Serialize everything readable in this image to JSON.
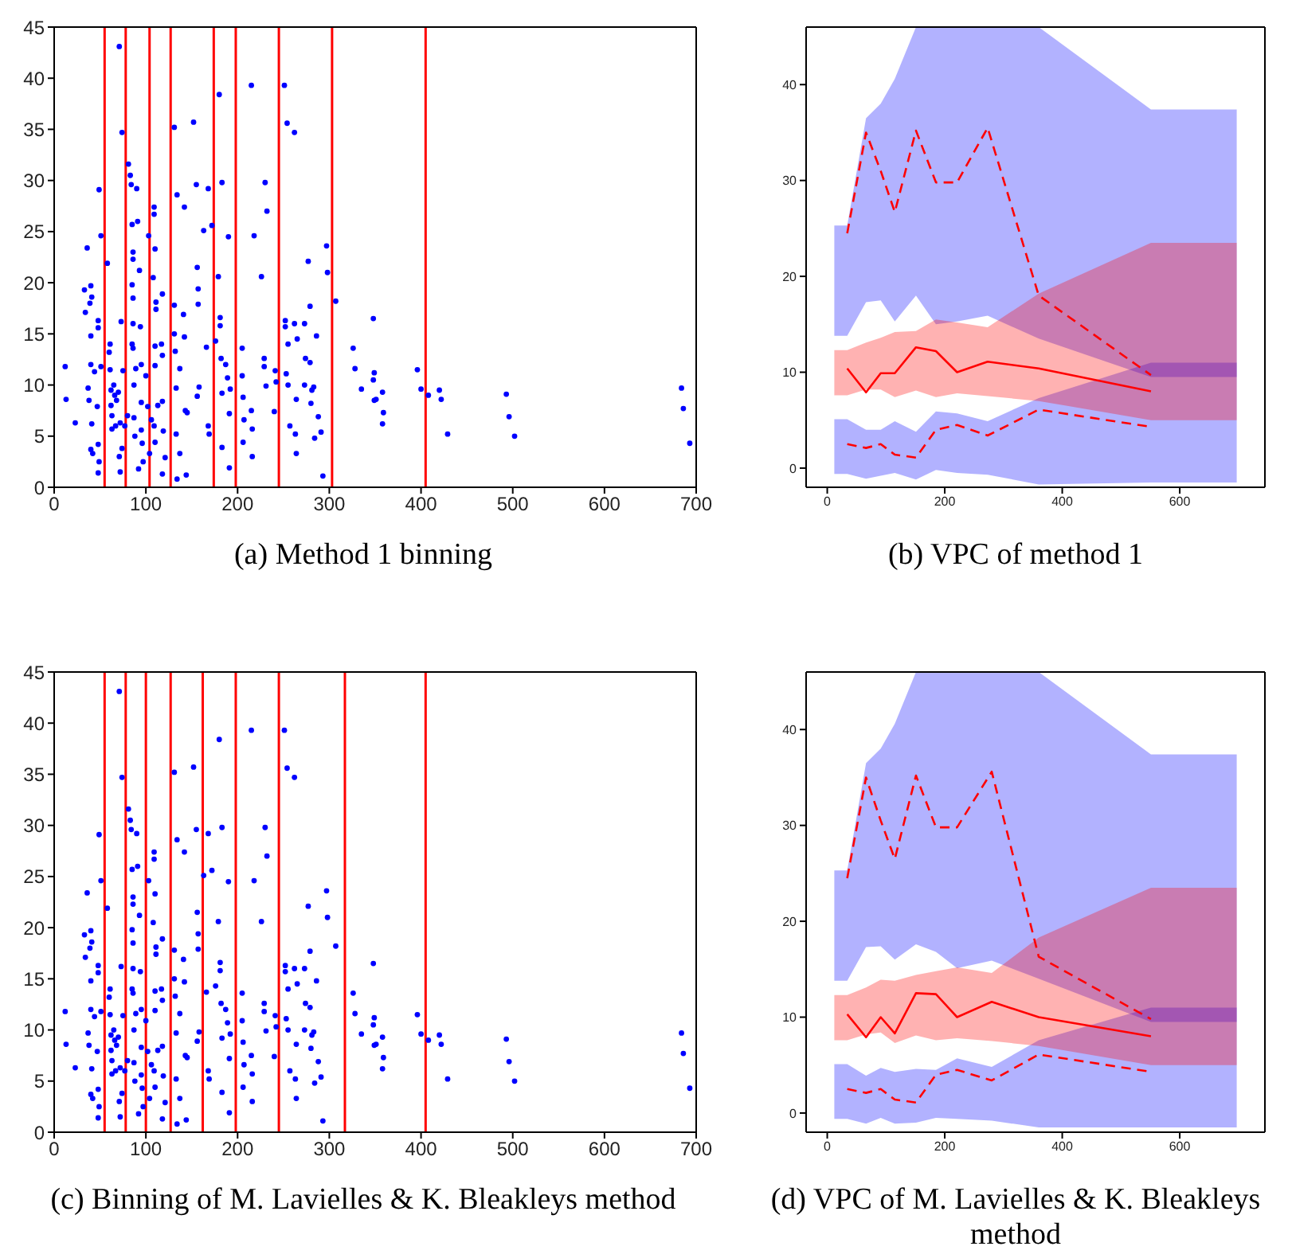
{
  "chart_data": [
    {
      "type": "scatter",
      "title": "(a) Method 1 binning",
      "xlim": [
        0,
        700
      ],
      "ylim": [
        0,
        45
      ],
      "xticks": [
        0,
        100,
        200,
        300,
        400,
        500,
        600,
        700
      ],
      "yticks": [
        0,
        5,
        10,
        15,
        20,
        25,
        30,
        35,
        40,
        45
      ],
      "marker": "circle",
      "ref_lines": [
        {
          "axis": "x",
          "value": 55,
          "color": "#ff0000"
        },
        {
          "axis": "x",
          "value": 78,
          "color": "#ff0000"
        },
        {
          "axis": "x",
          "value": 104,
          "color": "#ff0000"
        },
        {
          "axis": "x",
          "value": 127,
          "color": "#ff0000"
        },
        {
          "axis": "x",
          "value": 174,
          "color": "#ff0000"
        },
        {
          "axis": "x",
          "value": 198,
          "color": "#ff0000"
        },
        {
          "axis": "x",
          "value": 245,
          "color": "#ff0000"
        },
        {
          "axis": "x",
          "value": 303,
          "color": "#ff0000"
        },
        {
          "axis": "x",
          "value": 405,
          "color": "#ff0000"
        }
      ],
      "series": [
        {
          "color": "#0000ff",
          "x": [
            12,
            13,
            23,
            33,
            34,
            36,
            37,
            38,
            39,
            40,
            40,
            41,
            40,
            41,
            40,
            42,
            44,
            47,
            48,
            48,
            48,
            49,
            48,
            49,
            51,
            51,
            58,
            60,
            61,
            61,
            62,
            62,
            63,
            63,
            65,
            66,
            67,
            68,
            70,
            71,
            71,
            72,
            72,
            73,
            74,
            74,
            75,
            77,
            80,
            81,
            83,
            84,
            85,
            85,
            86,
            86,
            86,
            86,
            85,
            86,
            87,
            87,
            88,
            89,
            90,
            91,
            92,
            93,
            94,
            95,
            95,
            95,
            96,
            97,
            100,
            102,
            103,
            104,
            106,
            108,
            109,
            109,
            110,
            111,
            111,
            110,
            110,
            109,
            110,
            113,
            117,
            118,
            118,
            118,
            119,
            118,
            121,
            131,
            131,
            131,
            132,
            133,
            134,
            133,
            134,
            137,
            137,
            141,
            142,
            142,
            143,
            144,
            145,
            152,
            155,
            156,
            157,
            157,
            156,
            158,
            163,
            166,
            168,
            168,
            169,
            172,
            176,
            179,
            180,
            181,
            181,
            182,
            183,
            183,
            183,
            187,
            189,
            190,
            191,
            191,
            192,
            205,
            205,
            206,
            206,
            207,
            215,
            215,
            216,
            216,
            218,
            226,
            229,
            230,
            229,
            232,
            231,
            240,
            241,
            242,
            251,
            252,
            252,
            253,
            254,
            255,
            255,
            257,
            262,
            262,
            263,
            264,
            264,
            265,
            273,
            274,
            273,
            277,
            279,
            279,
            280,
            281,
            283,
            284,
            286,
            288,
            291,
            293,
            297,
            298,
            307,
            326,
            328,
            335,
            348,
            348,
            349,
            349,
            351,
            358,
            359,
            358,
            396,
            400,
            408,
            420,
            422,
            429,
            493,
            496,
            502,
            684,
            686,
            693
          ],
          "values": [
            11.8,
            8.6,
            6.3,
            19.3,
            17.1,
            23.4,
            9.7,
            8.5,
            18,
            19.7,
            14.8,
            18.6,
            12,
            6.2,
            3.7,
            3.3,
            11.3,
            7.9,
            16.3,
            15.6,
            4.2,
            2.5,
            1.4,
            29.1,
            24.6,
            11.8,
            21.9,
            13.2,
            14,
            11.5,
            9.5,
            8,
            7,
            5.7,
            10,
            9,
            6,
            8.5,
            9.3,
            43.1,
            3,
            6.3,
            1.5,
            16.2,
            34.7,
            3.8,
            11.4,
            6,
            7,
            31.6,
            30.5,
            29.6,
            25.7,
            19.8,
            23,
            22.3,
            18.5,
            16,
            14,
            13.6,
            10,
            6.8,
            5,
            11.6,
            29.2,
            26,
            1.8,
            21.2,
            15.7,
            12,
            8.3,
            5.6,
            4.3,
            2.5,
            10.9,
            7.9,
            24.6,
            3.3,
            6.6,
            20.5,
            27.4,
            26.7,
            23.3,
            18.1,
            17.4,
            13.8,
            11.9,
            6,
            4.4,
            8,
            14,
            18.9,
            12.9,
            8.4,
            5.5,
            1.3,
            2.9,
            35.2,
            17.8,
            15,
            13.3,
            9.7,
            28.6,
            5.2,
            0.8,
            3.3,
            11.6,
            16.9,
            27.4,
            14.7,
            7.5,
            1.2,
            7.3,
            35.7,
            29.6,
            21.5,
            19.4,
            17.9,
            8.9,
            9.8,
            25.1,
            13.7,
            29.2,
            6,
            5.2,
            25.6,
            14.3,
            20.6,
            38.4,
            16.6,
            15.8,
            12.6,
            29.8,
            9.2,
            3.9,
            12,
            10.7,
            24.5,
            7.2,
            1.9,
            9.6,
            13.6,
            10.9,
            8.8,
            4.4,
            6.6,
            39.3,
            7.5,
            5.7,
            3,
            24.6,
            20.6,
            12.6,
            29.8,
            11.8,
            27,
            9.9,
            7.4,
            11.4,
            10.3,
            39.3,
            16.3,
            15.7,
            11.1,
            35.6,
            14,
            10,
            6,
            16,
            34.7,
            5.2,
            8.6,
            3.3,
            14.5,
            16,
            12.6,
            10,
            22.1,
            17.7,
            12.2,
            8.2,
            9.5,
            9.8,
            4.8,
            14.8,
            6.9,
            5.4,
            1.1,
            23.6,
            21,
            18.2,
            13.6,
            11.6,
            9.6,
            16.5,
            10.5,
            11.2,
            8.5,
            8.6,
            9.3,
            7.3,
            6.2,
            11.5,
            9.6,
            9.0,
            9.5,
            8.6,
            5.2,
            9.1,
            6.9,
            5.0,
            9.7,
            7.7,
            4.3
          ]
        }
      ]
    },
    {
      "type": "line",
      "title": "(b) VPC of method 1",
      "xlim": [
        -36,
        745
      ],
      "ylim": [
        -2,
        46
      ],
      "xticks": [
        0,
        200,
        400,
        600
      ],
      "yticks": [
        0,
        10,
        20,
        30,
        40
      ],
      "series": [
        {
          "color": "#ff0000",
          "line_style": "dashed",
          "x": [
            12,
            34,
            66,
            91,
            115,
            151,
            185,
            221,
            273,
            360,
            551,
            697
          ],
          "values": [
            null,
            24.5,
            35,
            31,
            26.7,
            35.2,
            29.8,
            29.8,
            35.5,
            18,
            9.7,
            null
          ],
          "lower": [
            13.8,
            13.8,
            17.3,
            17.5,
            15.3,
            18,
            15,
            15.3,
            15.9,
            13.5,
            9.5,
            9.5
          ],
          "upper": [
            25.3,
            25.3,
            36.5,
            38,
            40.6,
            46,
            46,
            46,
            46,
            46,
            37.4,
            37.4
          ]
        },
        {
          "color": "#ff0000",
          "line_style": "dashed",
          "x": [
            12,
            34,
            66,
            91,
            115,
            151,
            185,
            221,
            273,
            360,
            551,
            697
          ],
          "values": [
            null,
            2.5,
            2.1,
            2.5,
            1.4,
            1.1,
            4,
            4.5,
            3.4,
            6.1,
            4.3,
            null
          ],
          "lower": [
            -0.6,
            -0.6,
            -1.1,
            -0.8,
            -0.5,
            -1.2,
            -0.2,
            -0.5,
            -0.7,
            -1.7,
            -1.5,
            -1.5
          ],
          "upper": [
            5.1,
            5.1,
            4,
            4,
            4.9,
            3.8,
            5.9,
            5.7,
            4.9,
            7.3,
            11,
            11
          ]
        },
        {
          "color": "#ff0000",
          "line_style": "solid",
          "x": [
            12,
            34,
            66,
            91,
            115,
            151,
            185,
            221,
            273,
            360,
            551,
            697
          ],
          "values": [
            null,
            10.4,
            7.9,
            9.9,
            9.9,
            12.6,
            12.2,
            10,
            11.1,
            10.4,
            8,
            null
          ],
          "lower": [
            7.6,
            7.6,
            8.2,
            8.2,
            7.4,
            8.1,
            7.4,
            7.8,
            7.5,
            7,
            5,
            5
          ],
          "upper": [
            12.3,
            12.3,
            13.1,
            13.6,
            14.2,
            14.3,
            15.5,
            15.2,
            14.7,
            18.2,
            23.5,
            23.5
          ]
        }
      ]
    },
    {
      "type": "scatter",
      "title": "(c) Binning of M. Lavielles & K. Bleakleys method",
      "xlim": [
        0,
        700
      ],
      "ylim": [
        0,
        45
      ],
      "xticks": [
        0,
        100,
        200,
        300,
        400,
        500,
        600,
        700
      ],
      "yticks": [
        0,
        5,
        10,
        15,
        20,
        25,
        30,
        35,
        40,
        45
      ],
      "marker": "circle",
      "ref_lines": [
        {
          "axis": "x",
          "value": 55,
          "color": "#ff0000"
        },
        {
          "axis": "x",
          "value": 78,
          "color": "#ff0000"
        },
        {
          "axis": "x",
          "value": 100,
          "color": "#ff0000"
        },
        {
          "axis": "x",
          "value": 127,
          "color": "#ff0000"
        },
        {
          "axis": "x",
          "value": 162,
          "color": "#ff0000"
        },
        {
          "axis": "x",
          "value": 198,
          "color": "#ff0000"
        },
        {
          "axis": "x",
          "value": 245,
          "color": "#ff0000"
        },
        {
          "axis": "x",
          "value": 317,
          "color": "#ff0000"
        },
        {
          "axis": "x",
          "value": 405,
          "color": "#ff0000"
        }
      ],
      "series": [
        {
          "color": "#0000ff",
          "x": [
            12,
            13,
            23,
            33,
            34,
            36,
            37,
            38,
            39,
            40,
            40,
            41,
            40,
            41,
            40,
            42,
            44,
            47,
            48,
            48,
            48,
            49,
            48,
            49,
            51,
            51,
            58,
            60,
            61,
            61,
            62,
            62,
            63,
            63,
            65,
            66,
            67,
            68,
            70,
            71,
            71,
            72,
            72,
            73,
            74,
            74,
            75,
            77,
            80,
            81,
            83,
            84,
            85,
            85,
            86,
            86,
            86,
            86,
            85,
            86,
            87,
            87,
            88,
            89,
            90,
            91,
            92,
            93,
            94,
            95,
            95,
            95,
            96,
            97,
            100,
            102,
            103,
            104,
            106,
            108,
            109,
            109,
            110,
            111,
            111,
            110,
            110,
            109,
            110,
            113,
            117,
            118,
            118,
            118,
            119,
            118,
            121,
            131,
            131,
            131,
            132,
            133,
            134,
            133,
            134,
            137,
            137,
            141,
            142,
            142,
            143,
            144,
            145,
            152,
            155,
            156,
            157,
            157,
            156,
            158,
            163,
            166,
            168,
            168,
            169,
            172,
            176,
            179,
            180,
            181,
            181,
            182,
            183,
            183,
            183,
            187,
            189,
            190,
            191,
            191,
            192,
            205,
            205,
            206,
            206,
            207,
            215,
            215,
            216,
            216,
            218,
            226,
            229,
            230,
            229,
            232,
            231,
            240,
            241,
            242,
            251,
            252,
            252,
            253,
            254,
            255,
            255,
            257,
            262,
            262,
            263,
            264,
            264,
            265,
            273,
            274,
            273,
            277,
            279,
            279,
            280,
            281,
            283,
            284,
            286,
            288,
            291,
            293,
            297,
            298,
            307,
            326,
            328,
            335,
            348,
            348,
            349,
            349,
            351,
            358,
            359,
            358,
            396,
            400,
            408,
            420,
            422,
            429,
            493,
            496,
            502,
            684,
            686,
            693
          ],
          "values": [
            11.8,
            8.6,
            6.3,
            19.3,
            17.1,
            23.4,
            9.7,
            8.5,
            18,
            19.7,
            14.8,
            18.6,
            12,
            6.2,
            3.7,
            3.3,
            11.3,
            7.9,
            16.3,
            15.6,
            4.2,
            2.5,
            1.4,
            29.1,
            24.6,
            11.8,
            21.9,
            13.2,
            14,
            11.5,
            9.5,
            8,
            7,
            5.7,
            10,
            9,
            6,
            8.5,
            9.3,
            43.1,
            3,
            6.3,
            1.5,
            16.2,
            34.7,
            3.8,
            11.4,
            6,
            7,
            31.6,
            30.5,
            29.6,
            25.7,
            19.8,
            23,
            22.3,
            18.5,
            16,
            14,
            13.6,
            10,
            6.8,
            5,
            11.6,
            29.2,
            26,
            1.8,
            21.2,
            15.7,
            12,
            8.3,
            5.6,
            4.3,
            2.5,
            10.9,
            7.9,
            24.6,
            3.3,
            6.6,
            20.5,
            27.4,
            26.7,
            23.3,
            18.1,
            17.4,
            13.8,
            11.9,
            6,
            4.4,
            8,
            14,
            18.9,
            12.9,
            8.4,
            5.5,
            1.3,
            2.9,
            35.2,
            17.8,
            15,
            13.3,
            9.7,
            28.6,
            5.2,
            0.8,
            3.3,
            11.6,
            16.9,
            27.4,
            14.7,
            7.5,
            1.2,
            7.3,
            35.7,
            29.6,
            21.5,
            19.4,
            17.9,
            8.9,
            9.8,
            25.1,
            13.7,
            29.2,
            6,
            5.2,
            25.6,
            14.3,
            20.6,
            38.4,
            16.6,
            15.8,
            12.6,
            29.8,
            9.2,
            3.9,
            12,
            10.7,
            24.5,
            7.2,
            1.9,
            9.6,
            13.6,
            10.9,
            8.8,
            4.4,
            6.6,
            39.3,
            7.5,
            5.7,
            3,
            24.6,
            20.6,
            12.6,
            29.8,
            11.8,
            27,
            9.9,
            7.4,
            11.4,
            10.3,
            39.3,
            16.3,
            15.7,
            11.1,
            35.6,
            14,
            10,
            6,
            16,
            34.7,
            5.2,
            8.6,
            3.3,
            14.5,
            16,
            12.6,
            10,
            22.1,
            17.7,
            12.2,
            8.2,
            9.5,
            9.8,
            4.8,
            14.8,
            6.9,
            5.4,
            1.1,
            23.6,
            21,
            18.2,
            13.6,
            11.6,
            9.6,
            16.5,
            10.5,
            11.2,
            8.5,
            8.6,
            9.3,
            7.3,
            6.2,
            11.5,
            9.6,
            9.0,
            9.5,
            8.6,
            5.2,
            9.1,
            6.9,
            5.0,
            9.7,
            7.7,
            4.3
          ]
        }
      ]
    },
    {
      "type": "line",
      "title": "(d) VPC of M. Lavielles & K. Bleakleys method",
      "xlim": [
        -36,
        745
      ],
      "ylim": [
        -2,
        46
      ],
      "xticks": [
        0,
        200,
        400,
        600
      ],
      "yticks": [
        0,
        10,
        20,
        30,
        40
      ],
      "series": [
        {
          "color": "#ff0000",
          "line_style": "dashed",
          "x": [
            12,
            34,
            66,
            91,
            115,
            151,
            185,
            221,
            280,
            360,
            551,
            697
          ],
          "values": [
            null,
            24.5,
            35,
            30.5,
            26.5,
            35.2,
            29.8,
            29.8,
            35.6,
            16.3,
            9.8,
            null
          ],
          "lower": [
            13.8,
            13.8,
            17.3,
            17.4,
            16,
            17.6,
            16.8,
            15.1,
            15.9,
            14,
            9.5,
            9.5
          ],
          "upper": [
            25.3,
            25.3,
            36.5,
            38,
            40.6,
            46,
            46,
            46,
            46,
            46,
            37.4,
            37.4
          ]
        },
        {
          "color": "#ff0000",
          "line_style": "dashed",
          "x": [
            12,
            34,
            66,
            91,
            115,
            151,
            185,
            221,
            280,
            360,
            551,
            697
          ],
          "values": [
            null,
            2.5,
            2.1,
            2.5,
            1.4,
            1.1,
            4,
            4.5,
            3.4,
            6.1,
            4.3,
            null
          ],
          "lower": [
            -0.6,
            -0.6,
            -1.1,
            -0.5,
            -1.1,
            -1,
            -0.5,
            -0.6,
            -0.8,
            -1.5,
            -1.5,
            -1.5
          ],
          "upper": [
            5.1,
            5.1,
            3.9,
            4.7,
            4.3,
            4.6,
            4.5,
            5.7,
            4.8,
            7.6,
            11,
            11
          ]
        },
        {
          "color": "#ff0000",
          "line_style": "solid",
          "x": [
            12,
            34,
            66,
            91,
            115,
            151,
            185,
            221,
            280,
            360,
            551,
            697
          ],
          "values": [
            null,
            10.3,
            7.9,
            10,
            8.3,
            12.5,
            12.4,
            10,
            11.6,
            10,
            8,
            null
          ],
          "lower": [
            7.6,
            7.6,
            8.2,
            8.4,
            7.3,
            8.1,
            7.6,
            7.8,
            7.5,
            7,
            5,
            5
          ],
          "upper": [
            12.3,
            12.3,
            13.1,
            13.9,
            13.8,
            14.4,
            14.8,
            15.2,
            14.6,
            18.3,
            23.5,
            23.5
          ]
        }
      ]
    }
  ]
}
